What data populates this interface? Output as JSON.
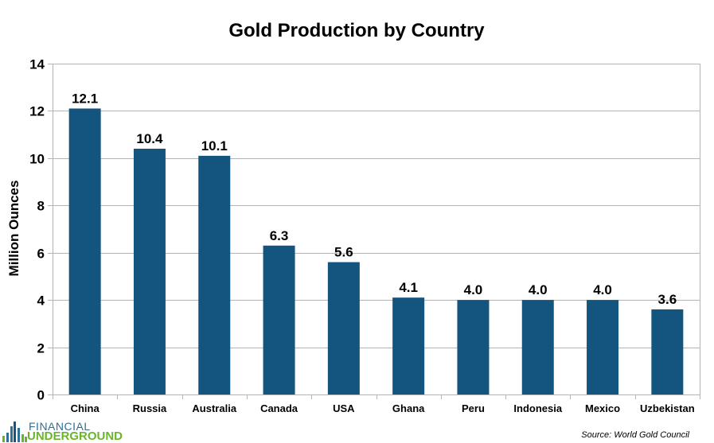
{
  "chart_data": {
    "type": "bar",
    "title": "Gold Production by Country",
    "xlabel": "",
    "ylabel": "Million Ounces",
    "ylim": [
      0,
      14
    ],
    "yticks": [
      0,
      2,
      4,
      6,
      8,
      10,
      12,
      14
    ],
    "grid": true,
    "legend": "none",
    "categories": [
      "China",
      "Russia",
      "Australia",
      "Canada",
      "USA",
      "Ghana",
      "Peru",
      "Indonesia",
      "Mexico",
      "Uzbekistan"
    ],
    "values": [
      12.1,
      10.4,
      10.1,
      6.3,
      5.6,
      4.1,
      4.0,
      4.0,
      4.0,
      3.6
    ],
    "data_labels": [
      "12.1",
      "10.4",
      "10.1",
      "6.3",
      "5.6",
      "4.1",
      "4.0",
      "4.0",
      "4.0",
      "3.6"
    ],
    "bar_color": "#14557f"
  },
  "source": "Source: World Gold Council",
  "logo": {
    "top": "FINANCIAL",
    "bottom": "UNDERGROUND"
  }
}
